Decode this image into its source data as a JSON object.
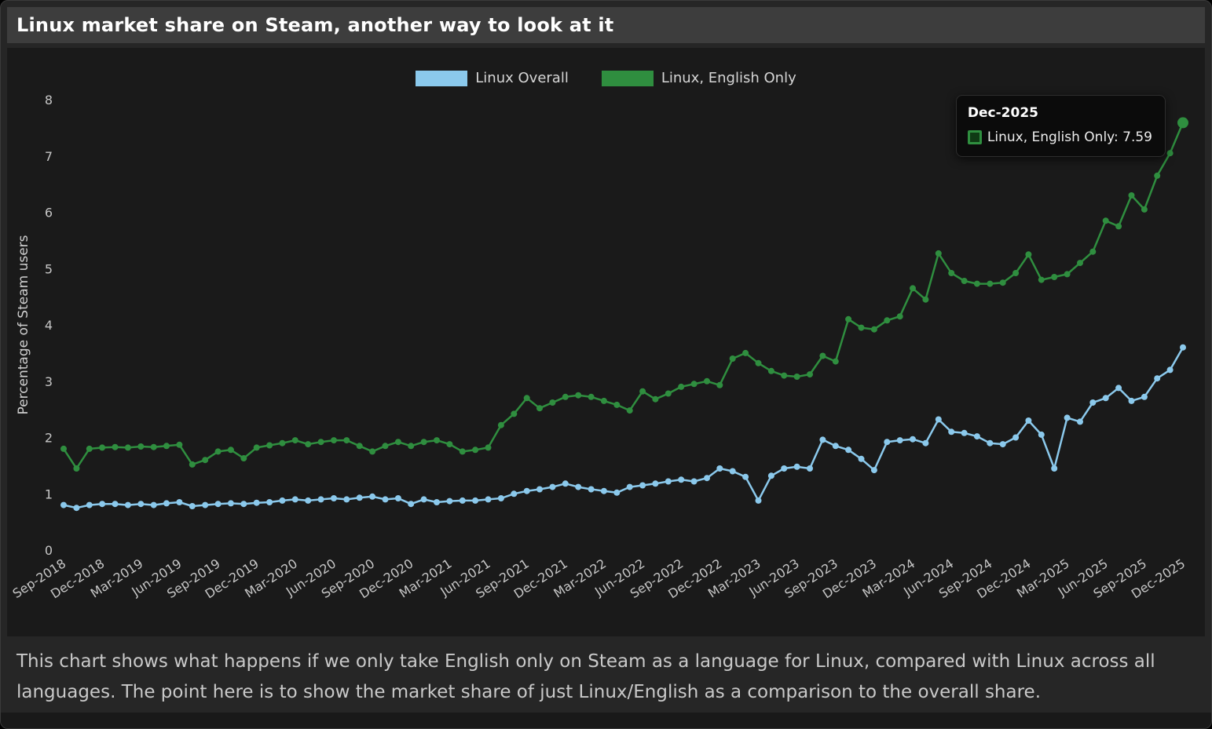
{
  "title": "Linux market share on Steam, another way to look at it",
  "description": "This chart shows what happens if we only take English only on Steam as a language for Linux, compared with Linux across all languages. The point here is to show the market share of just Linux/English as a comparison to the overall share.",
  "tooltip": {
    "title": "Dec-2025",
    "text": "Linux, English Only: 7.59"
  },
  "colors": {
    "page_bg": "#262626",
    "chart_bg": "#1a1a1a",
    "titlebar_bg": "#3d3d3d",
    "blue_series": "#8bc9ec",
    "green_series": "#2f8e3f"
  },
  "chart_data": {
    "type": "line",
    "title": "Linux market share on Steam, another way to look at it",
    "xlabel": "",
    "ylabel": "Percentage of Steam users",
    "ylim": [
      0,
      8
    ],
    "yticks": [
      0,
      1,
      2,
      3,
      4,
      5,
      6,
      7,
      8
    ],
    "grid": false,
    "legend_position": "top-center",
    "xtick_every": 3,
    "x": [
      "Sep-2018",
      "Oct-2018",
      "Nov-2018",
      "Dec-2018",
      "Jan-2019",
      "Feb-2019",
      "Mar-2019",
      "Apr-2019",
      "May-2019",
      "Jun-2019",
      "Jul-2019",
      "Aug-2019",
      "Sep-2019",
      "Oct-2019",
      "Nov-2019",
      "Dec-2019",
      "Jan-2020",
      "Feb-2020",
      "Mar-2020",
      "Apr-2020",
      "May-2020",
      "Jun-2020",
      "Jul-2020",
      "Aug-2020",
      "Sep-2020",
      "Oct-2020",
      "Nov-2020",
      "Dec-2020",
      "Jan-2021",
      "Feb-2021",
      "Mar-2021",
      "Apr-2021",
      "May-2021",
      "Jun-2021",
      "Jul-2021",
      "Aug-2021",
      "Sep-2021",
      "Oct-2021",
      "Nov-2021",
      "Dec-2021",
      "Jan-2022",
      "Feb-2022",
      "Mar-2022",
      "Apr-2022",
      "May-2022",
      "Jun-2022",
      "Jul-2022",
      "Aug-2022",
      "Sep-2022",
      "Oct-2022",
      "Nov-2022",
      "Dec-2022",
      "Jan-2023",
      "Feb-2023",
      "Mar-2023",
      "Apr-2023",
      "May-2023",
      "Jun-2023",
      "Jul-2023",
      "Aug-2023",
      "Sep-2023",
      "Oct-2023",
      "Nov-2023",
      "Dec-2023",
      "Jan-2024",
      "Feb-2024",
      "Mar-2024",
      "Apr-2024",
      "May-2024",
      "Jun-2024",
      "Jul-2024",
      "Aug-2024",
      "Sep-2024",
      "Oct-2024",
      "Nov-2024",
      "Dec-2024",
      "Jan-2025",
      "Feb-2025",
      "Mar-2025",
      "Apr-2025",
      "May-2025",
      "Jun-2025",
      "Jul-2025",
      "Aug-2025",
      "Sep-2025",
      "Oct-2025",
      "Nov-2025",
      "Dec-2025"
    ],
    "series": [
      {
        "name": "Linux Overall",
        "color": "#8bc9ec",
        "values": [
          0.8,
          0.75,
          0.8,
          0.82,
          0.82,
          0.8,
          0.82,
          0.8,
          0.83,
          0.85,
          0.78,
          0.8,
          0.82,
          0.83,
          0.82,
          0.84,
          0.85,
          0.88,
          0.9,
          0.88,
          0.9,
          0.92,
          0.9,
          0.93,
          0.95,
          0.9,
          0.92,
          0.82,
          0.9,
          0.85,
          0.87,
          0.88,
          0.88,
          0.9,
          0.92,
          1.0,
          1.05,
          1.08,
          1.12,
          1.18,
          1.12,
          1.08,
          1.05,
          1.02,
          1.12,
          1.15,
          1.18,
          1.22,
          1.25,
          1.22,
          1.28,
          1.45,
          1.4,
          1.3,
          0.88,
          1.32,
          1.45,
          1.48,
          1.45,
          1.96,
          1.85,
          1.78,
          1.62,
          1.42,
          1.92,
          1.95,
          1.97,
          1.9,
          2.32,
          2.1,
          2.08,
          2.02,
          1.9,
          1.88,
          2.0,
          2.3,
          2.05,
          1.45,
          2.35,
          2.28,
          2.62,
          2.7,
          2.88,
          2.65,
          2.72,
          3.05,
          3.2,
          3.6
        ]
      },
      {
        "name": "Linux, English Only",
        "color": "#2f8e3f",
        "values": [
          1.8,
          1.45,
          1.8,
          1.82,
          1.83,
          1.82,
          1.84,
          1.83,
          1.85,
          1.87,
          1.52,
          1.6,
          1.75,
          1.78,
          1.63,
          1.82,
          1.86,
          1.9,
          1.95,
          1.88,
          1.92,
          1.95,
          1.95,
          1.85,
          1.75,
          1.85,
          1.92,
          1.85,
          1.92,
          1.95,
          1.88,
          1.75,
          1.78,
          1.82,
          2.22,
          2.42,
          2.7,
          2.52,
          2.62,
          2.72,
          2.75,
          2.72,
          2.65,
          2.58,
          2.48,
          2.82,
          2.68,
          2.78,
          2.9,
          2.95,
          3.0,
          2.93,
          3.4,
          3.5,
          3.32,
          3.18,
          3.1,
          3.08,
          3.12,
          3.45,
          3.35,
          4.1,
          3.95,
          3.92,
          4.08,
          4.15,
          4.65,
          4.45,
          5.27,
          4.92,
          4.78,
          4.73,
          4.73,
          4.75,
          4.92,
          5.25,
          4.8,
          4.85,
          4.9,
          5.1,
          5.3,
          5.85,
          5.75,
          6.3,
          6.05,
          6.65,
          7.05,
          7.59
        ]
      }
    ],
    "highlight_point": {
      "series": "Linux, English Only",
      "x": "Dec-2025",
      "value": 7.59
    }
  }
}
